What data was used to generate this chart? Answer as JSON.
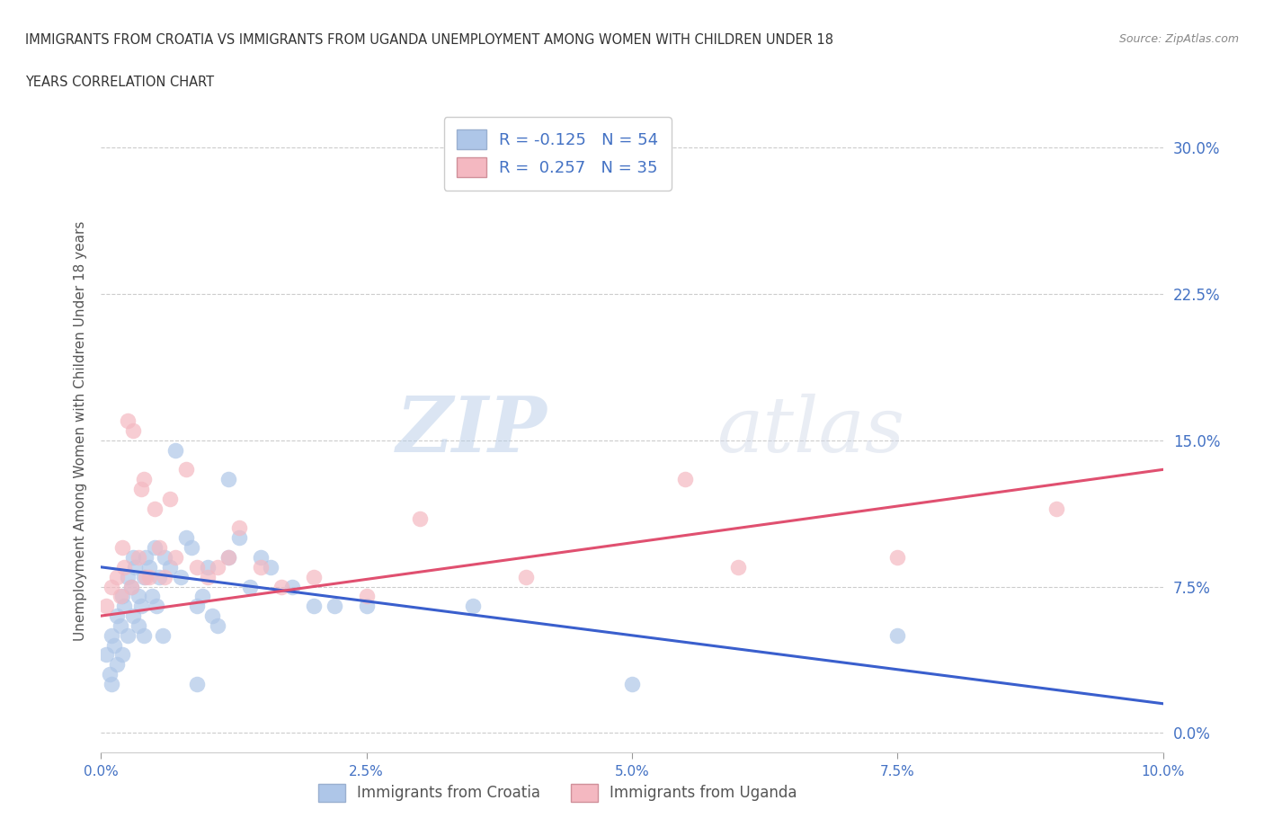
{
  "title_line1": "IMMIGRANTS FROM CROATIA VS IMMIGRANTS FROM UGANDA UNEMPLOYMENT AMONG WOMEN WITH CHILDREN UNDER 18",
  "title_line2": "YEARS CORRELATION CHART",
  "source": "Source: ZipAtlas.com",
  "ylabel": "Unemployment Among Women with Children Under 18 years",
  "xlabel_vals": [
    0.0,
    2.5,
    5.0,
    7.5,
    10.0
  ],
  "ylabel_vals": [
    0.0,
    7.5,
    15.0,
    22.5,
    30.0
  ],
  "xlim": [
    0.0,
    10.0
  ],
  "ylim": [
    -1.0,
    32.0
  ],
  "croatia_R": -0.125,
  "croatia_N": 54,
  "uganda_R": 0.257,
  "uganda_N": 35,
  "legend_labels": [
    "Immigrants from Croatia",
    "Immigrants from Uganda"
  ],
  "croatia_color": "#aec6e8",
  "uganda_color": "#f4b8c1",
  "croatia_line_color": "#3a5fcd",
  "uganda_line_color": "#e05070",
  "watermark_zip": "ZIP",
  "watermark_atlas": "atlas",
  "croatia_x": [
    0.05,
    0.08,
    0.1,
    0.1,
    0.12,
    0.15,
    0.15,
    0.18,
    0.2,
    0.2,
    0.22,
    0.25,
    0.25,
    0.28,
    0.3,
    0.3,
    0.32,
    0.35,
    0.35,
    0.38,
    0.4,
    0.4,
    0.42,
    0.45,
    0.48,
    0.5,
    0.52,
    0.55,
    0.58,
    0.6,
    0.65,
    0.7,
    0.75,
    0.8,
    0.85,
    0.9,
    0.9,
    0.95,
    1.0,
    1.05,
    1.1,
    1.2,
    1.2,
    1.3,
    1.4,
    1.5,
    1.6,
    1.8,
    2.0,
    2.2,
    2.5,
    3.5,
    5.0,
    7.5
  ],
  "croatia_y": [
    4.0,
    3.0,
    5.0,
    2.5,
    4.5,
    6.0,
    3.5,
    5.5,
    7.0,
    4.0,
    6.5,
    8.0,
    5.0,
    7.5,
    9.0,
    6.0,
    8.5,
    7.0,
    5.5,
    6.5,
    8.0,
    5.0,
    9.0,
    8.5,
    7.0,
    9.5,
    6.5,
    8.0,
    5.0,
    9.0,
    8.5,
    14.5,
    8.0,
    10.0,
    9.5,
    6.5,
    2.5,
    7.0,
    8.5,
    6.0,
    5.5,
    9.0,
    13.0,
    10.0,
    7.5,
    9.0,
    8.5,
    7.5,
    6.5,
    6.5,
    6.5,
    6.5,
    2.5,
    5.0
  ],
  "uganda_x": [
    0.05,
    0.1,
    0.15,
    0.18,
    0.2,
    0.22,
    0.25,
    0.28,
    0.3,
    0.35,
    0.38,
    0.4,
    0.45,
    0.5,
    0.55,
    0.6,
    0.65,
    0.7,
    0.8,
    0.9,
    1.0,
    1.1,
    1.2,
    1.3,
    1.5,
    1.7,
    2.0,
    2.5,
    3.0,
    4.0,
    5.5,
    6.0,
    7.5,
    9.0,
    0.42
  ],
  "uganda_y": [
    6.5,
    7.5,
    8.0,
    7.0,
    9.5,
    8.5,
    16.0,
    7.5,
    15.5,
    9.0,
    12.5,
    13.0,
    8.0,
    11.5,
    9.5,
    8.0,
    12.0,
    9.0,
    13.5,
    8.5,
    8.0,
    8.5,
    9.0,
    10.5,
    8.5,
    7.5,
    8.0,
    7.0,
    11.0,
    8.0,
    13.0,
    8.5,
    9.0,
    11.5,
    8.0
  ],
  "croatia_line_x0": 0.0,
  "croatia_line_y0": 8.5,
  "croatia_line_x1": 10.0,
  "croatia_line_y1": 1.5,
  "uganda_line_x0": 0.0,
  "uganda_line_y0": 6.0,
  "uganda_line_x1": 10.0,
  "uganda_line_y1": 13.5
}
